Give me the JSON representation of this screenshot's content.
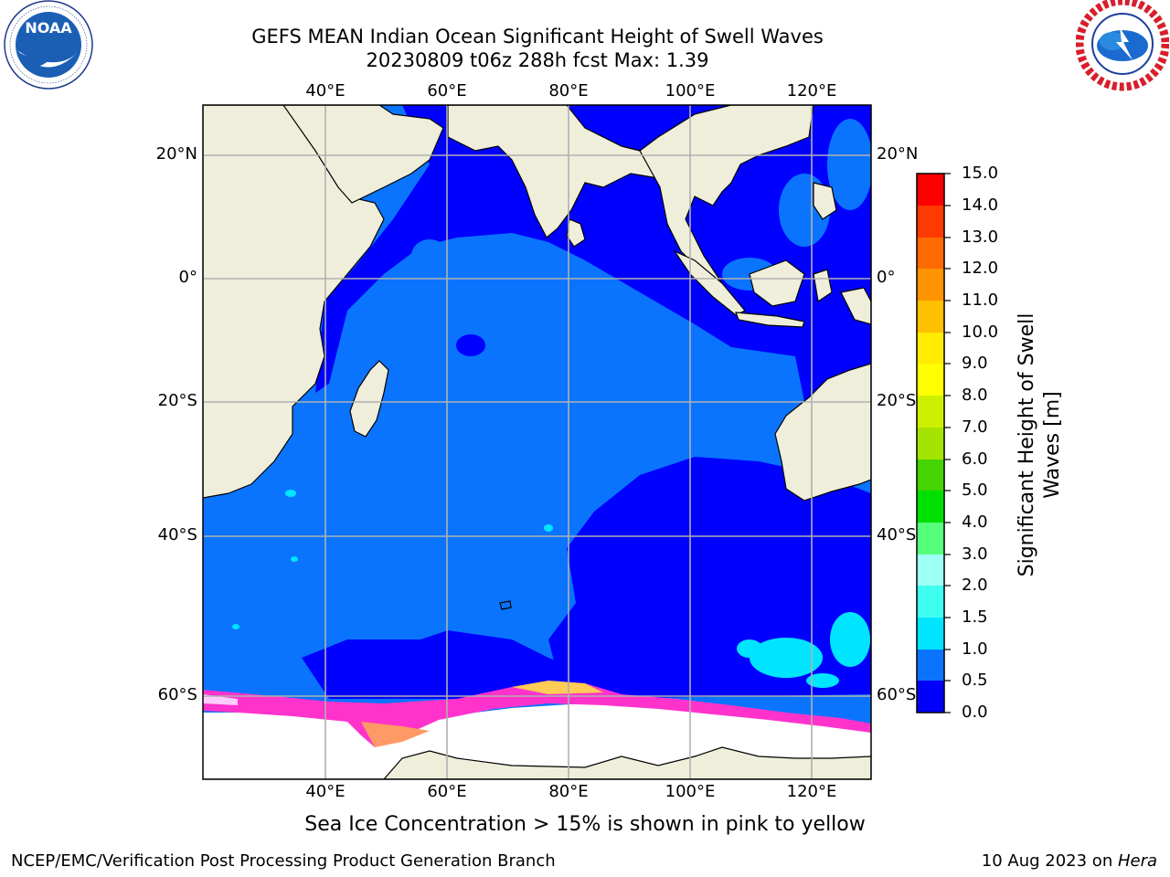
{
  "title": {
    "line1": "GEFS MEAN Indian Ocean Significant Height of Swell Waves",
    "line2": "20230809 t06z 288h fcst   Max: 1.39"
  },
  "logos": {
    "left": {
      "name": "NOAA",
      "text": "NOAA",
      "ring_text": "NATIONAL OCEANIC AND ATMOSPHERIC ADMINISTRATION · U.S. DEPARTMENT OF COMMERCE"
    },
    "right": {
      "name": "National Weather Service",
      "ring_text": "NATIONAL WEATHER SERVICE"
    }
  },
  "map": {
    "lon_ticks": [
      "40°E",
      "60°E",
      "80°E",
      "100°E",
      "120°E"
    ],
    "lat_ticks": [
      "20°N",
      "0°",
      "20°S",
      "40°S",
      "60°S"
    ],
    "lon_range": [
      20,
      130
    ],
    "lat_range": [
      -68,
      27
    ],
    "colors": {
      "land": "#efeedb",
      "ocean_low": "#0000ff",
      "ocean_mid": "#0a74ff",
      "ice": "#ffffff",
      "grid": "#b0b0b0"
    }
  },
  "colorbar": {
    "label": "Significant Height of Swell Waves [m]",
    "label_line1": "Significant Height of Swell",
    "label_line2": "Waves [m]",
    "ticks": [
      "0.0",
      "0.5",
      "1.0",
      "1.5",
      "2.0",
      "3.0",
      "4.0",
      "5.0",
      "6.0",
      "7.0",
      "8.0",
      "9.0",
      "10.0",
      "11.0",
      "12.0",
      "13.0",
      "14.0",
      "15.0"
    ],
    "colors": [
      "#0000ff",
      "#0a74ff",
      "#00e5ff",
      "#3dfff0",
      "#9efff5",
      "#55ff7a",
      "#00e000",
      "#44d400",
      "#a4e400",
      "#ccf000",
      "#ffff00",
      "#ffec00",
      "#ffc000",
      "#ff9400",
      "#ff6a00",
      "#ff3a00",
      "#ff0000"
    ]
  },
  "note": "Sea Ice Concentration > 15% is shown in pink to yellow",
  "footer": {
    "left": "NCEP/EMC/Verification Post Processing Product Generation Branch",
    "right_date": "10 Aug 2023 on ",
    "right_host": "Hera"
  }
}
